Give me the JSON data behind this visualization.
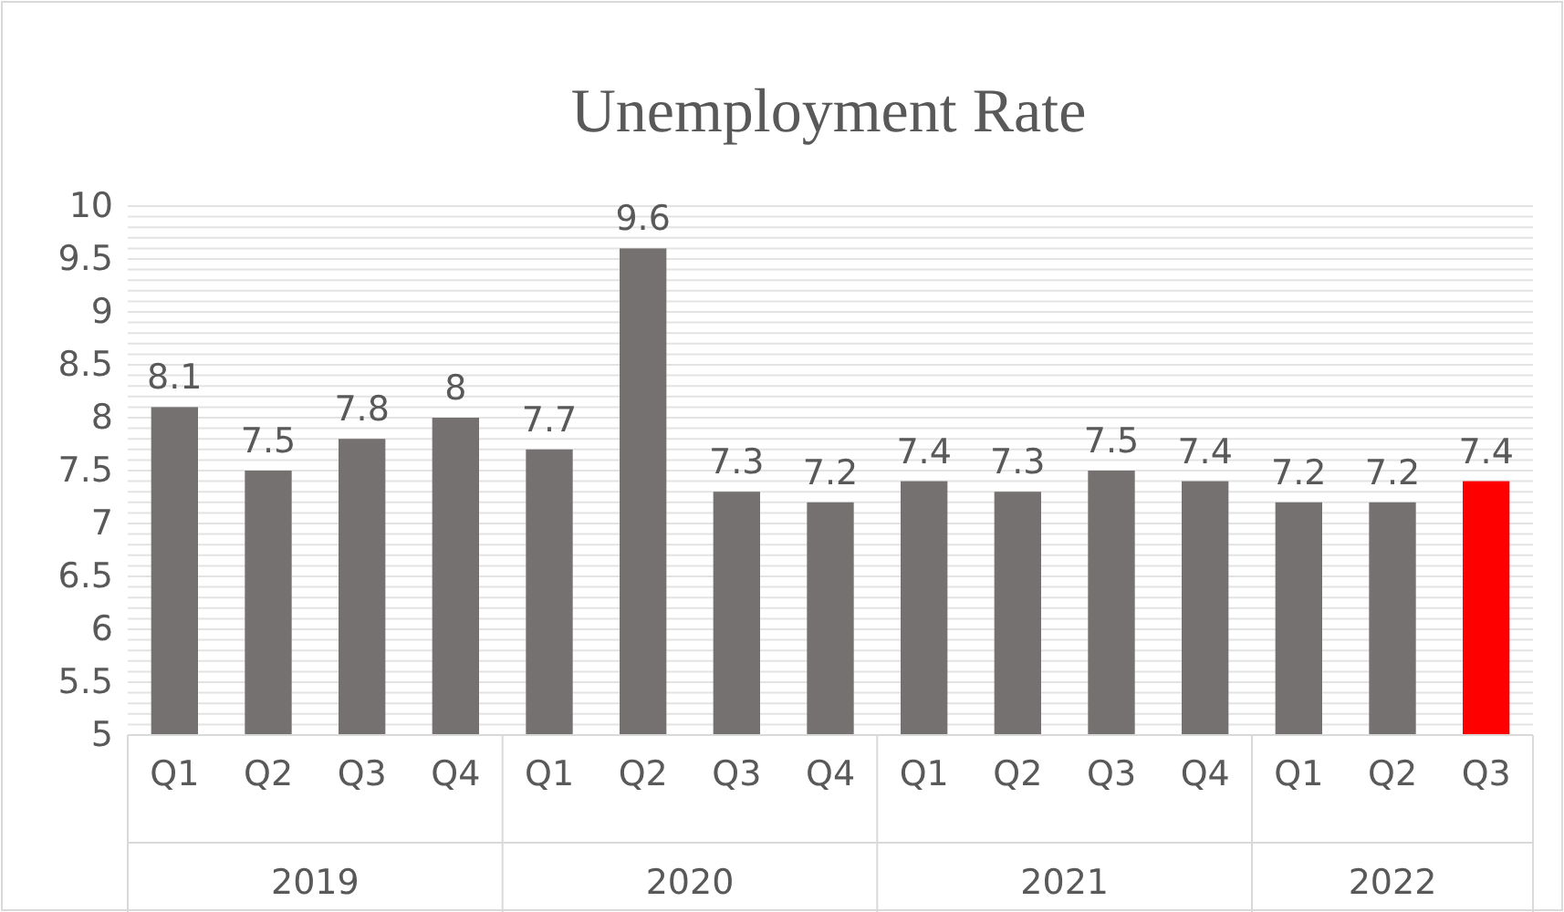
{
  "chart_data": {
    "type": "bar",
    "title": "Unemployment Rate",
    "categories": [
      "Q1",
      "Q2",
      "Q3",
      "Q4",
      "Q1",
      "Q2",
      "Q3",
      "Q4",
      "Q1",
      "Q2",
      "Q3",
      "Q4",
      "Q1",
      "Q2",
      "Q3"
    ],
    "values": [
      8.1,
      7.5,
      7.8,
      8,
      7.7,
      9.6,
      7.3,
      7.2,
      7.4,
      7.3,
      7.5,
      7.4,
      7.2,
      7.2,
      7.4
    ],
    "colors": [
      "#767171",
      "#767171",
      "#767171",
      "#767171",
      "#767171",
      "#767171",
      "#767171",
      "#767171",
      "#767171",
      "#767171",
      "#767171",
      "#767171",
      "#767171",
      "#767171",
      "#ff0000"
    ],
    "data_labels": true,
    "ylim": [
      5,
      10
    ],
    "yticks": [
      5,
      {
        "value": 5.1,
        "label": null
      },
      {
        "value": 5.2,
        "label": null
      },
      {
        "value": 5.3,
        "label": null
      },
      {
        "value": 5.4,
        "label": null
      },
      5.5,
      {
        "value": 5.6,
        "label": null
      },
      {
        "value": 5.7,
        "label": null
      },
      {
        "value": 5.8,
        "label": null
      },
      {
        "value": 5.9,
        "label": null
      },
      6,
      {
        "value": 6.1,
        "label": null
      },
      {
        "value": 6.2,
        "label": null
      },
      {
        "value": 6.3,
        "label": null
      },
      {
        "value": 6.4,
        "label": null
      },
      6.5,
      {
        "value": 6.6,
        "label": null
      },
      {
        "value": 6.7,
        "label": null
      },
      {
        "value": 6.8,
        "label": null
      },
      {
        "value": 6.9,
        "label": null
      },
      7,
      {
        "value": 7.1,
        "label": null
      },
      {
        "value": 7.2,
        "label": null
      },
      {
        "value": 7.3,
        "label": null
      },
      {
        "value": 7.4,
        "label": null
      },
      7.5,
      {
        "value": 7.6,
        "label": null
      },
      {
        "value": 7.7,
        "label": null
      },
      {
        "value": 7.8,
        "label": null
      },
      {
        "value": 7.9,
        "label": null
      },
      8,
      {
        "value": 8.1,
        "label": null
      },
      {
        "value": 8.2,
        "label": null
      },
      {
        "value": 8.3,
        "label": null
      },
      {
        "value": 8.4,
        "label": null
      },
      8.5,
      {
        "value": 8.6,
        "label": null
      },
      {
        "value": 8.7,
        "label": null
      },
      {
        "value": 8.8,
        "label": null
      },
      {
        "value": 8.9,
        "label": null
      },
      9,
      {
        "value": 9.1,
        "label": null
      },
      {
        "value": 9.2,
        "label": null
      },
      {
        "value": 9.3,
        "label": null
      },
      {
        "value": 9.4,
        "label": null
      },
      9.5,
      {
        "value": 9.6,
        "label": null
      },
      {
        "value": 9.7,
        "label": null
      },
      {
        "value": 9.8,
        "label": null
      },
      {
        "value": 9.9,
        "label": null
      },
      10
    ],
    "grid": "y",
    "annotations": [
      "2019",
      "2020",
      "2021",
      "2022"
    ]
  }
}
